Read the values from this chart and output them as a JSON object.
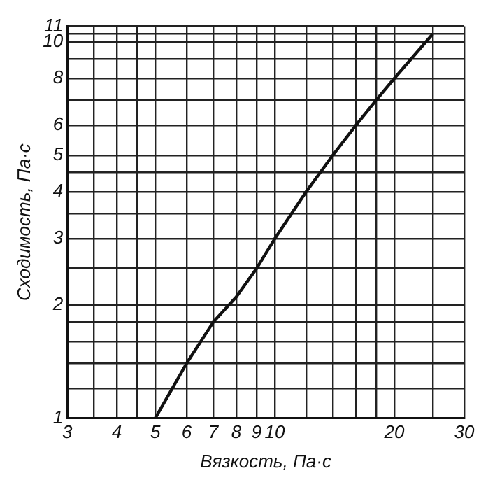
{
  "chart_data": {
    "type": "line",
    "xlabel": "Вязкость, Па·с",
    "ylabel": "Сходимость, Па·с",
    "x": [
      5,
      6,
      7,
      8,
      9,
      10,
      12,
      14,
      16,
      18,
      20,
      25
    ],
    "series": [
      {
        "color": "#111111",
        "values": [
          1,
          1.4,
          1.8,
          2.1,
          2.5,
          3,
          4,
          5,
          6,
          7,
          8,
          10.5
        ]
      }
    ],
    "log": "xy",
    "grid": true,
    "legend": false,
    "marker": "none",
    "line_style": "solid",
    "xlim": [
      3,
      30
    ],
    "xticks": [
      3,
      {
        "value": 3.5,
        "label": null
      },
      4,
      {
        "value": 4.5,
        "label": null
      },
      5,
      6,
      7,
      8,
      9,
      10,
      {
        "value": 12,
        "label": null
      },
      {
        "value": 14,
        "label": null
      },
      {
        "value": 16,
        "label": null
      },
      {
        "value": 18,
        "label": null
      },
      20,
      {
        "value": 25,
        "label": null
      },
      30
    ],
    "ylim": [
      1,
      11
    ],
    "yticks": [
      1,
      {
        "value": 1.2,
        "label": null
      },
      {
        "value": 1.4,
        "label": null
      },
      {
        "value": 1.6,
        "label": null
      },
      {
        "value": 1.8,
        "label": null
      },
      2,
      {
        "value": 2.5,
        "label": null
      },
      3,
      {
        "value": 3.5,
        "label": null
      },
      4,
      {
        "value": 4.5,
        "label": null
      },
      5,
      6,
      {
        "value": 7,
        "label": null
      },
      8,
      {
        "value": 9,
        "label": null
      },
      10,
      {
        "value": 10.5,
        "label": null
      },
      11
    ]
  }
}
